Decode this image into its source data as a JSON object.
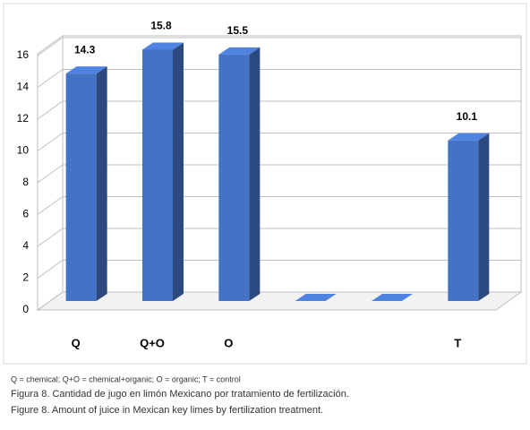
{
  "chart_data": {
    "type": "bar3d",
    "categories": [
      "Q",
      "Q+O",
      "O",
      null,
      null,
      "T"
    ],
    "values": [
      14.3,
      15.8,
      15.5,
      0,
      0,
      10.1
    ],
    "value_labels": [
      "14.3",
      "15.8",
      "15.5",
      null,
      null,
      "10.1"
    ],
    "color": "#4472c4",
    "ylim": [
      0,
      16
    ],
    "yticks": [
      0,
      2,
      4,
      6,
      8,
      10,
      12,
      14,
      16
    ],
    "grid": true,
    "notes": "Q = chemical; Q+O = chemical+organic; O = organic; T = control",
    "caption_es": "Figura 8. Cantidad de jugo en limón Mexicano por tratamiento de fertilización.",
    "caption_en": "Figure 8. Amount of juice in Mexican key limes by fertilization treatment."
  }
}
